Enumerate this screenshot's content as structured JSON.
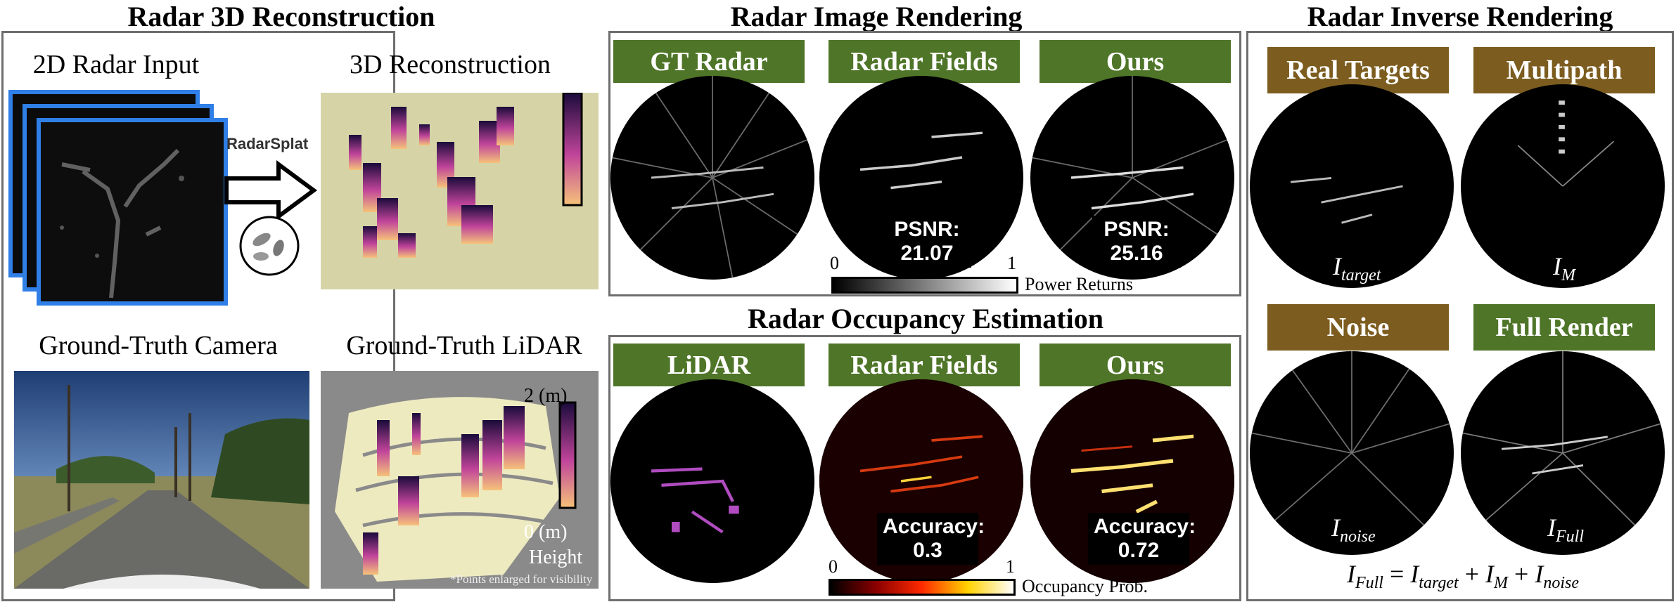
{
  "left": {
    "title": "Radar 3D Reconstruction",
    "radar_input_caption": "2D Radar Input",
    "recon_caption": "3D Reconstruction",
    "method_logo": "RadarSplat",
    "camera_caption": "Ground-Truth Camera",
    "lidar_caption": "Ground-Truth LiDAR",
    "height_top": "2 (m)",
    "height_bottom": "0 (m)",
    "height_label": "Height",
    "footnote": "*Points enlarged for visibility"
  },
  "middle": {
    "render_title": "Radar Image Rendering",
    "render_tags": [
      "GT Radar",
      "Radar Fields",
      "Ours"
    ],
    "psnr_label": "PSNR:",
    "psnr_values": [
      "21.07",
      "25.16"
    ],
    "power_cbar": {
      "min": "0",
      "max": "1",
      "label": "Power Returns"
    },
    "occ_title": "Radar Occupancy Estimation",
    "occ_tags": [
      "LiDAR",
      "Radar Fields",
      "Ours"
    ],
    "accuracy_label": "Accuracy:",
    "accuracy_values": [
      "0.3",
      "0.72"
    ],
    "occ_cbar": {
      "min": "0",
      "max": "1",
      "label": "Occupancy Prob."
    }
  },
  "right": {
    "title": "Radar Inverse Rendering",
    "tags": [
      "Real Targets",
      "Multipath",
      "Noise",
      "Full Render"
    ],
    "sym": {
      "I": "I",
      "target": "target",
      "M": "M",
      "noise": "noise",
      "Full": "Full"
    },
    "equation_eq": " = ",
    "equation_plus": " + "
  },
  "colors": {
    "green_tag": "#4f7528",
    "brown_tag": "#7c5d1f",
    "input_frame": "#2f7fe6",
    "panel_border": "#6e6e6e"
  }
}
